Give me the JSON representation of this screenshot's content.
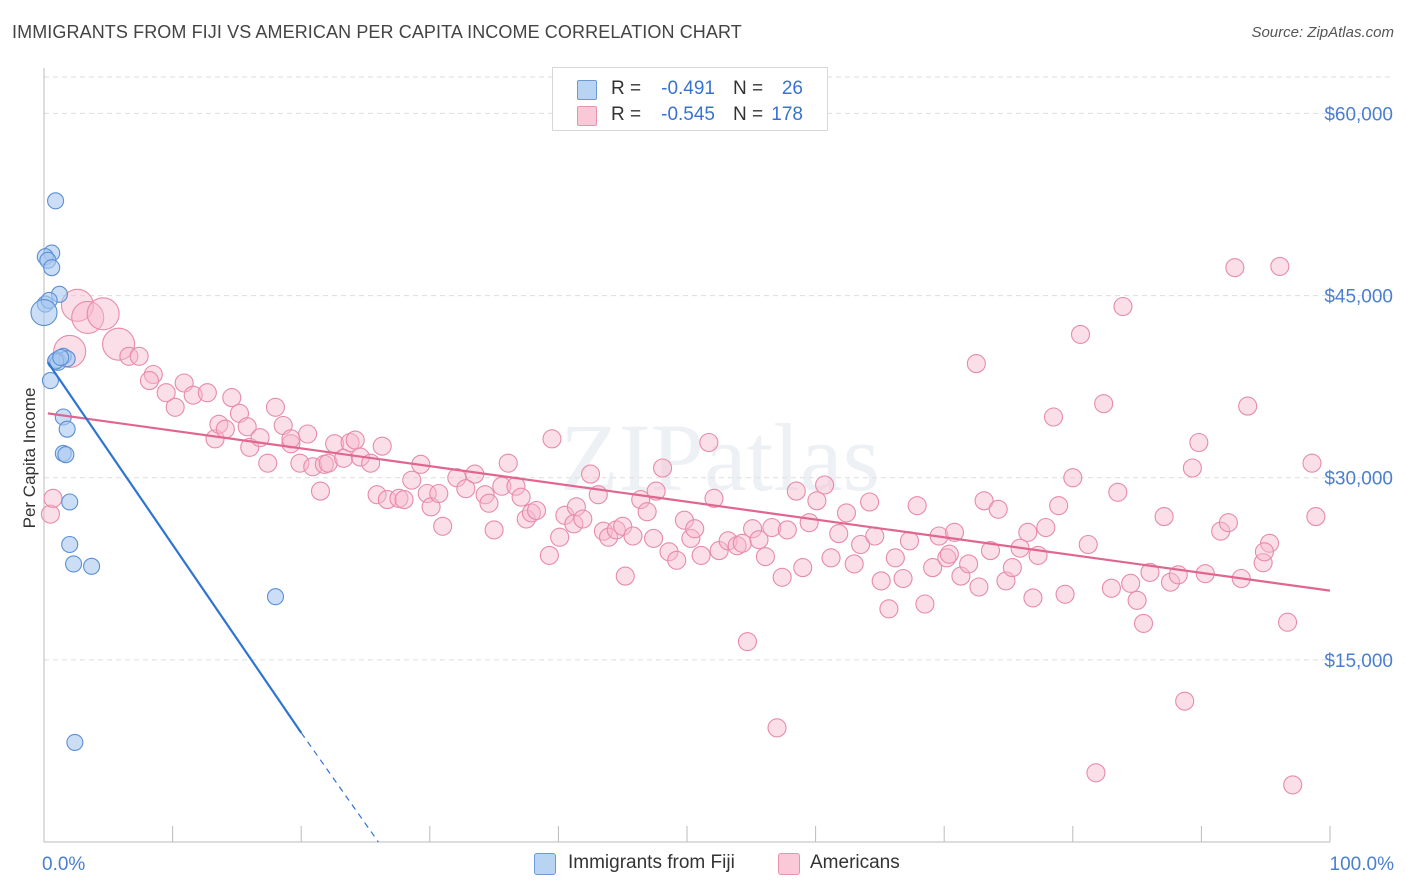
{
  "header": {
    "title": "IMMIGRANTS FROM FIJI VS AMERICAN PER CAPITA INCOME CORRELATION CHART",
    "source": "Source: ZipAtlas.com"
  },
  "legend": {
    "series": [
      {
        "r_label": "R =",
        "r_value": "-0.491",
        "n_label": "N =",
        "n_value": "26"
      },
      {
        "r_label": "R =",
        "r_value": "-0.545",
        "n_label": "N =",
        "n_value": "178"
      }
    ]
  },
  "bottom_legend": {
    "fiji": "Immigrants from Fiji",
    "americans": "Americans"
  },
  "colors": {
    "fiji_fill": "#a9c8f0",
    "fiji_stroke": "#5b8fd6",
    "fiji_line": "#2f74d0",
    "amer_fill": "#f6b8cc",
    "amer_stroke": "#e88aa8",
    "amer_line": "#e06690",
    "grid": "#dddddd",
    "accent_text": "#4a7fd0"
  },
  "chart_data": {
    "type": "scatter",
    "title": "IMMIGRANTS FROM FIJI VS AMERICAN PER CAPITA INCOME CORRELATION CHART",
    "xlabel": "",
    "ylabel": "Per Capita Income",
    "xlim": [
      0,
      100
    ],
    "ylim": [
      0,
      63000
    ],
    "x_tick_labels": [
      "0.0%",
      "100.0%"
    ],
    "y_ticks": [
      15000,
      30000,
      45000,
      60000
    ],
    "y_tick_labels": [
      "$15,000",
      "$30,000",
      "$45,000",
      "$60,000"
    ],
    "grid": true,
    "watermark": "ZIPatlas",
    "series": [
      {
        "name": "Immigrants from Fiji",
        "points": [
          [
            0.9,
            52800
          ],
          [
            0.6,
            48500
          ],
          [
            0.1,
            48200
          ],
          [
            0.3,
            47900
          ],
          [
            0.6,
            47300
          ],
          [
            1.2,
            45100
          ],
          [
            0.1,
            44300
          ],
          [
            0.4,
            44600
          ],
          [
            0.0,
            43600
          ],
          [
            1.5,
            40000
          ],
          [
            1.0,
            39700
          ],
          [
            1.1,
            39500
          ],
          [
            1.8,
            39800
          ],
          [
            0.5,
            38000
          ],
          [
            1.5,
            35000
          ],
          [
            1.8,
            34000
          ],
          [
            1.5,
            32000
          ],
          [
            1.7,
            31900
          ],
          [
            2.0,
            28000
          ],
          [
            2.0,
            24500
          ],
          [
            2.3,
            22900
          ],
          [
            3.7,
            22700
          ],
          [
            18.0,
            20200
          ],
          [
            2.4,
            8200
          ],
          [
            0.9,
            39600
          ],
          [
            1.3,
            39900
          ]
        ],
        "trend": {
          "x0": 0.3,
          "y0": 39500,
          "x1": 20.0,
          "y1": 9000,
          "dash_to_x": 26.0,
          "dash_to_y": 0
        }
      },
      {
        "name": "Americans",
        "points": [
          [
            0.5,
            27000
          ],
          [
            0.7,
            28300
          ],
          [
            2.6,
            44200
          ],
          [
            3.4,
            43200
          ],
          [
            4.6,
            43500
          ],
          [
            5.8,
            41000
          ],
          [
            6.6,
            40000
          ],
          [
            7.4,
            40000
          ],
          [
            2.0,
            40400
          ],
          [
            8.5,
            38500
          ],
          [
            8.2,
            38000
          ],
          [
            9.5,
            37000
          ],
          [
            10.2,
            35800
          ],
          [
            10.9,
            37800
          ],
          [
            11.6,
            36800
          ],
          [
            12.7,
            37000
          ],
          [
            13.3,
            33200
          ],
          [
            13.6,
            34400
          ],
          [
            14.1,
            34000
          ],
          [
            14.6,
            36600
          ],
          [
            15.2,
            35300
          ],
          [
            15.8,
            34200
          ],
          [
            16.0,
            32500
          ],
          [
            16.8,
            33300
          ],
          [
            17.4,
            31200
          ],
          [
            18.0,
            35800
          ],
          [
            18.6,
            34300
          ],
          [
            19.2,
            32800
          ],
          [
            19.2,
            33200
          ],
          [
            19.9,
            31200
          ],
          [
            20.5,
            33600
          ],
          [
            20.9,
            30900
          ],
          [
            21.5,
            28900
          ],
          [
            21.8,
            31100
          ],
          [
            22.1,
            31200
          ],
          [
            22.6,
            32800
          ],
          [
            23.3,
            31600
          ],
          [
            23.8,
            32900
          ],
          [
            24.2,
            33100
          ],
          [
            24.6,
            31700
          ],
          [
            25.4,
            31200
          ],
          [
            25.9,
            28600
          ],
          [
            26.3,
            32600
          ],
          [
            26.7,
            28200
          ],
          [
            27.6,
            28300
          ],
          [
            28.0,
            28200
          ],
          [
            28.6,
            29800
          ],
          [
            29.3,
            31100
          ],
          [
            29.8,
            28700
          ],
          [
            30.1,
            27600
          ],
          [
            30.7,
            28700
          ],
          [
            31.0,
            26000
          ],
          [
            32.1,
            30000
          ],
          [
            32.8,
            29100
          ],
          [
            33.5,
            30300
          ],
          [
            34.3,
            28600
          ],
          [
            34.6,
            27900
          ],
          [
            35.0,
            25700
          ],
          [
            35.6,
            29300
          ],
          [
            36.1,
            31200
          ],
          [
            36.7,
            29300
          ],
          [
            37.1,
            28400
          ],
          [
            37.5,
            26600
          ],
          [
            37.9,
            27100
          ],
          [
            38.3,
            27300
          ],
          [
            39.3,
            23600
          ],
          [
            39.5,
            33200
          ],
          [
            40.1,
            25100
          ],
          [
            40.5,
            26900
          ],
          [
            41.2,
            26200
          ],
          [
            41.4,
            27600
          ],
          [
            41.9,
            26600
          ],
          [
            42.5,
            30300
          ],
          [
            43.1,
            28600
          ],
          [
            43.5,
            25600
          ],
          [
            43.9,
            25100
          ],
          [
            44.5,
            25700
          ],
          [
            45.0,
            26000
          ],
          [
            45.2,
            21900
          ],
          [
            45.8,
            25200
          ],
          [
            46.4,
            28200
          ],
          [
            46.9,
            27200
          ],
          [
            47.4,
            25000
          ],
          [
            47.6,
            28900
          ],
          [
            48.1,
            30800
          ],
          [
            48.6,
            23900
          ],
          [
            49.2,
            23200
          ],
          [
            49.8,
            26500
          ],
          [
            50.3,
            25000
          ],
          [
            50.6,
            25800
          ],
          [
            51.1,
            23600
          ],
          [
            51.7,
            32900
          ],
          [
            52.1,
            28300
          ],
          [
            52.5,
            24000
          ],
          [
            53.2,
            24800
          ],
          [
            53.9,
            24400
          ],
          [
            54.3,
            24600
          ],
          [
            54.7,
            16500
          ],
          [
            55.1,
            25800
          ],
          [
            55.6,
            24900
          ],
          [
            56.1,
            23500
          ],
          [
            56.6,
            25900
          ],
          [
            57.0,
            9400
          ],
          [
            57.4,
            21800
          ],
          [
            57.8,
            25700
          ],
          [
            58.5,
            28900
          ],
          [
            59.0,
            22600
          ],
          [
            59.5,
            26300
          ],
          [
            60.1,
            28100
          ],
          [
            60.7,
            29400
          ],
          [
            61.2,
            23400
          ],
          [
            61.8,
            25400
          ],
          [
            62.4,
            27100
          ],
          [
            63.0,
            22900
          ],
          [
            63.5,
            24500
          ],
          [
            64.2,
            28000
          ],
          [
            64.6,
            25200
          ],
          [
            65.1,
            21500
          ],
          [
            65.7,
            19200
          ],
          [
            66.2,
            23400
          ],
          [
            66.8,
            21700
          ],
          [
            67.3,
            24800
          ],
          [
            67.9,
            27700
          ],
          [
            68.5,
            19600
          ],
          [
            69.1,
            22600
          ],
          [
            69.6,
            25200
          ],
          [
            70.2,
            23400
          ],
          [
            70.8,
            25500
          ],
          [
            71.3,
            21900
          ],
          [
            71.9,
            22900
          ],
          [
            72.5,
            39400
          ],
          [
            72.7,
            21000
          ],
          [
            73.1,
            28100
          ],
          [
            73.6,
            24000
          ],
          [
            74.2,
            27400
          ],
          [
            74.8,
            21500
          ],
          [
            75.3,
            22600
          ],
          [
            75.9,
            24200
          ],
          [
            76.5,
            25500
          ],
          [
            76.9,
            20100
          ],
          [
            77.3,
            23600
          ],
          [
            77.9,
            25900
          ],
          [
            78.5,
            35000
          ],
          [
            78.9,
            27700
          ],
          [
            79.4,
            20400
          ],
          [
            80.0,
            30000
          ],
          [
            80.6,
            41800
          ],
          [
            81.2,
            24500
          ],
          [
            81.8,
            5700
          ],
          [
            82.4,
            36100
          ],
          [
            83.0,
            20900
          ],
          [
            83.5,
            28800
          ],
          [
            83.9,
            44100
          ],
          [
            84.5,
            21300
          ],
          [
            85.0,
            19900
          ],
          [
            85.5,
            18000
          ],
          [
            86.0,
            22200
          ],
          [
            87.1,
            26800
          ],
          [
            87.6,
            21400
          ],
          [
            88.2,
            22000
          ],
          [
            88.7,
            11600
          ],
          [
            89.3,
            30800
          ],
          [
            89.8,
            32900
          ],
          [
            90.3,
            22100
          ],
          [
            91.5,
            25600
          ],
          [
            92.1,
            26300
          ],
          [
            92.6,
            47300
          ],
          [
            93.1,
            21700
          ],
          [
            93.6,
            35900
          ],
          [
            94.8,
            23000
          ],
          [
            95.3,
            24600
          ],
          [
            96.1,
            47400
          ],
          [
            96.7,
            18100
          ],
          [
            97.1,
            4700
          ],
          [
            98.6,
            31200
          ],
          [
            98.9,
            26800
          ],
          [
            94.9,
            23900
          ],
          [
            70.4,
            23700
          ]
        ],
        "trend": {
          "x0": 0.3,
          "y0": 35300,
          "x1": 100.0,
          "y1": 20700
        }
      }
    ]
  }
}
